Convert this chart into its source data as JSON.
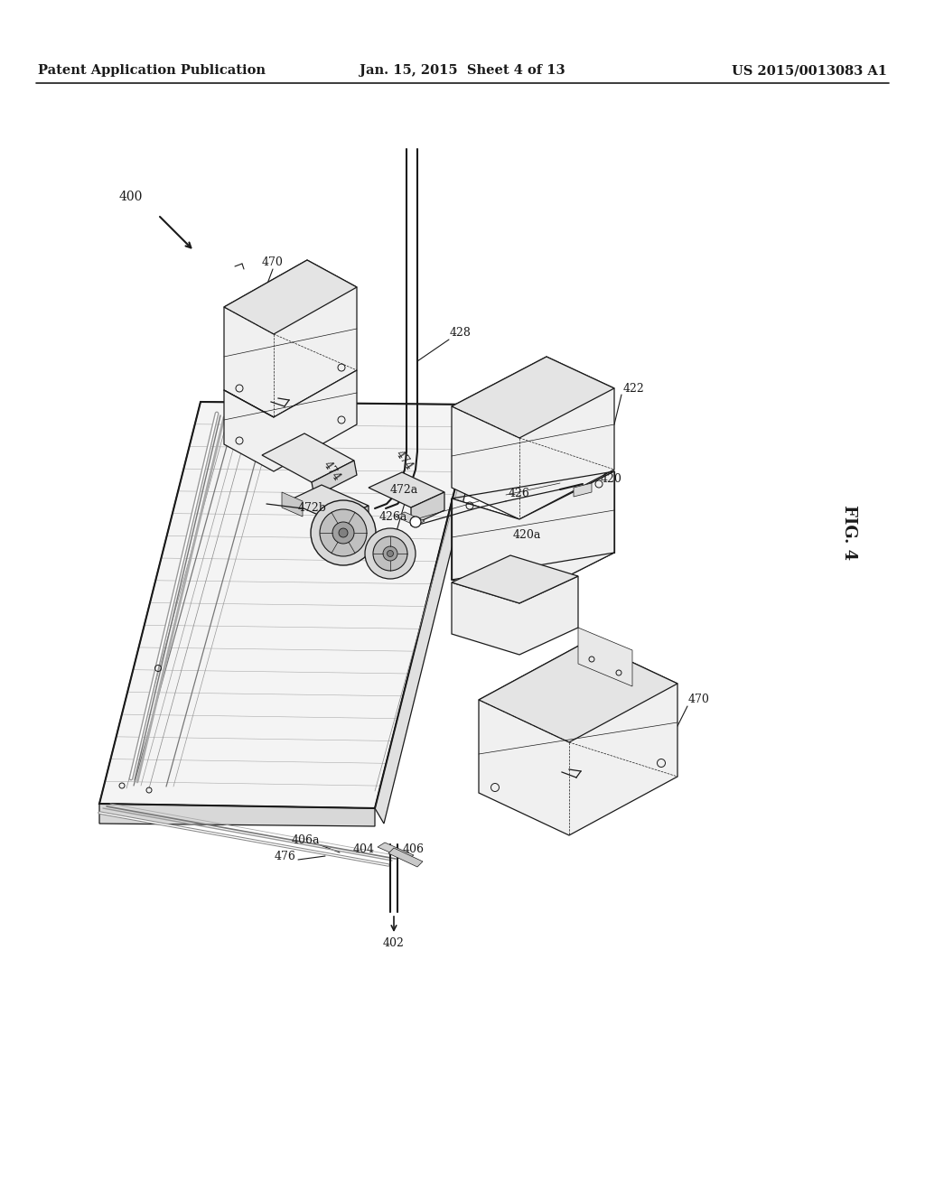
{
  "background_color": "#ffffff",
  "line_color": "#1a1a1a",
  "header_left": "Patent Application Publication",
  "header_center": "Jan. 15, 2015  Sheet 4 of 13",
  "header_right": "US 2015/0013083 A1",
  "fig_label": "FIG. 4",
  "header_fontsize": 10.5,
  "label_fontsize": 9,
  "fig_label_fontsize": 13,
  "lw_thin": 0.5,
  "lw_med": 0.9,
  "lw_thick": 1.5,
  "ramp_color": "#f4f4f4",
  "box_face_color": "#f0f0f0",
  "box_top_color": "#e4e4e4",
  "box_side_color": "#dcdcdc"
}
